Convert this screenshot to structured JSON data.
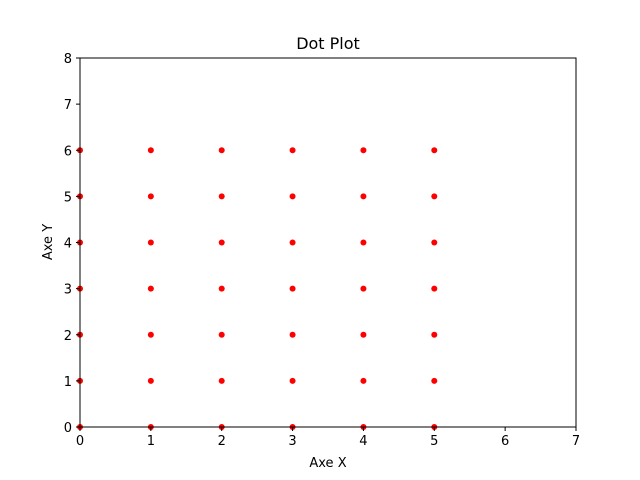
{
  "chart_data": {
    "type": "scatter",
    "title": "Dot Plot",
    "xlabel": "Axe X",
    "ylabel": "Axe Y",
    "xlim": [
      0,
      7
    ],
    "ylim": [
      0,
      8
    ],
    "xticks": [
      "0",
      "1",
      "2",
      "3",
      "4",
      "5",
      "6",
      "7"
    ],
    "yticks": [
      "0",
      "1",
      "2",
      "3",
      "4",
      "5",
      "6",
      "7",
      "8"
    ],
    "grid": false,
    "marker_color": "#ff0000",
    "series": [
      {
        "points": [
          [
            0,
            0
          ],
          [
            0,
            1
          ],
          [
            0,
            2
          ],
          [
            0,
            3
          ],
          [
            0,
            4
          ],
          [
            0,
            5
          ],
          [
            0,
            6
          ],
          [
            1,
            0
          ],
          [
            1,
            1
          ],
          [
            1,
            2
          ],
          [
            1,
            3
          ],
          [
            1,
            4
          ],
          [
            1,
            5
          ],
          [
            1,
            6
          ],
          [
            2,
            0
          ],
          [
            2,
            1
          ],
          [
            2,
            2
          ],
          [
            2,
            3
          ],
          [
            2,
            4
          ],
          [
            2,
            5
          ],
          [
            2,
            6
          ],
          [
            3,
            0
          ],
          [
            3,
            1
          ],
          [
            3,
            2
          ],
          [
            3,
            3
          ],
          [
            3,
            4
          ],
          [
            3,
            5
          ],
          [
            3,
            6
          ],
          [
            4,
            0
          ],
          [
            4,
            1
          ],
          [
            4,
            2
          ],
          [
            4,
            3
          ],
          [
            4,
            4
          ],
          [
            4,
            5
          ],
          [
            4,
            6
          ],
          [
            5,
            0
          ],
          [
            5,
            1
          ],
          [
            5,
            2
          ],
          [
            5,
            3
          ],
          [
            5,
            4
          ],
          [
            5,
            5
          ],
          [
            5,
            6
          ]
        ]
      }
    ]
  }
}
